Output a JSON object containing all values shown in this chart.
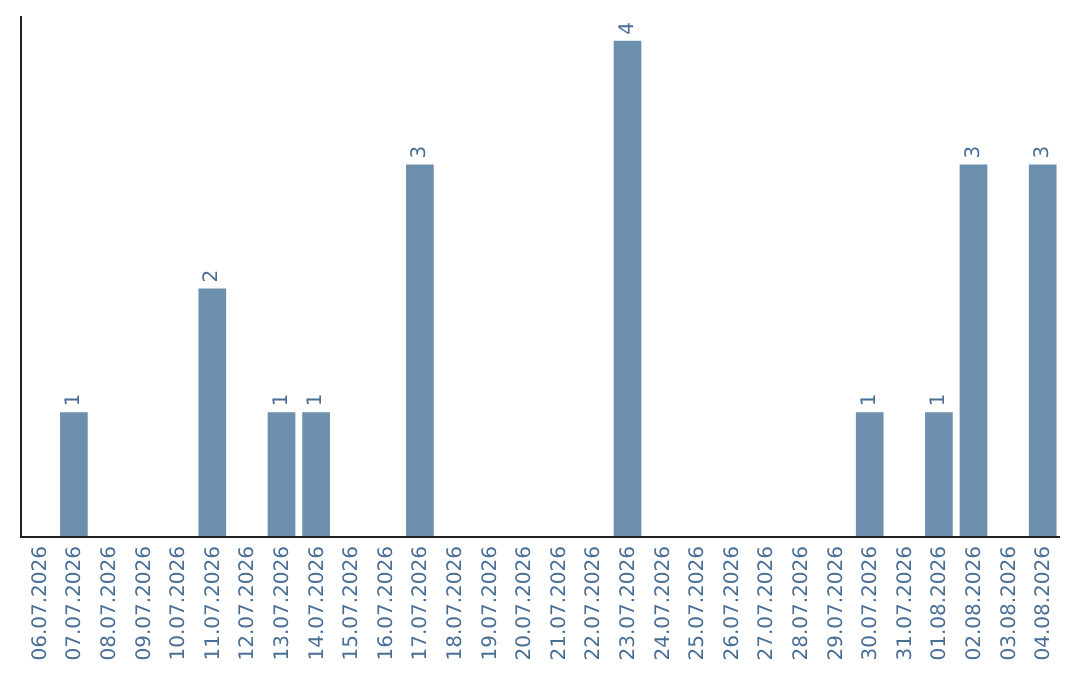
{
  "chart_data": {
    "type": "bar",
    "categories": [
      "06.07.2026",
      "07.07.2026",
      "08.07.2026",
      "09.07.2026",
      "10.07.2026",
      "11.07.2026",
      "12.07.2026",
      "13.07.2026",
      "14.07.2026",
      "15.07.2026",
      "16.07.2026",
      "17.07.2026",
      "18.07.2026",
      "19.07.2026",
      "20.07.2026",
      "21.07.2026",
      "22.07.2026",
      "23.07.2026",
      "24.07.2026",
      "25.07.2026",
      "26.07.2026",
      "27.07.2026",
      "28.07.2026",
      "29.07.2026",
      "30.07.2026",
      "31.07.2026",
      "01.08.2026",
      "02.08.2026",
      "03.08.2026",
      "04.08.2026"
    ],
    "values": [
      0,
      1,
      0,
      0,
      0,
      2,
      0,
      1,
      1,
      0,
      0,
      3,
      0,
      0,
      0,
      0,
      0,
      4,
      0,
      0,
      0,
      0,
      0,
      0,
      1,
      0,
      1,
      3,
      0,
      3
    ],
    "value_labels": [
      null,
      "1",
      null,
      null,
      null,
      "2",
      null,
      "1",
      "1",
      null,
      null,
      "3",
      null,
      null,
      null,
      null,
      null,
      "4",
      null,
      null,
      null,
      null,
      null,
      null,
      "1",
      null,
      "1",
      "3",
      null,
      "3"
    ],
    "color": "#6d8fae",
    "ylim": [
      0,
      4.2
    ],
    "tick_labels": "x"
  }
}
